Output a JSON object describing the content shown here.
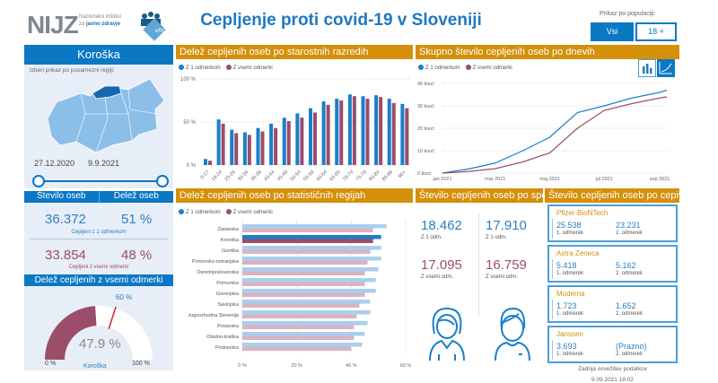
{
  "header": {
    "logo": "NIJZ",
    "institute_line1": "Nacionalni inštitut",
    "institute_line2_prefix": "za ",
    "institute_line2_bold": "javno zdravje",
    "erco_logo": "eRCO",
    "title": "Cepljenje proti covid-19 v Sloveniji",
    "population_label": "Prikaz po populaciji:",
    "btn_all": "Vsi",
    "btn_18": "18 +"
  },
  "region": {
    "name": "Koroška",
    "select_label": "Izberi prikaz po posamezni regiji:",
    "date_from": "27.12.2020",
    "date_to": "9.9.2021"
  },
  "stats": {
    "col1": "Število oseb",
    "col2": "Delež oseb",
    "dose1_count": "36.372",
    "dose1_pct": "51 %",
    "dose1_label": "Cepljeni z 1 odmerkom",
    "full_count": "33.854",
    "full_pct": "48 %",
    "full_label": "Cepljeni z vsemi odmerki"
  },
  "gauge": {
    "title": "Delež cepljenih z vsemi odmerki",
    "value": 47.9,
    "value_label": "47.9 %",
    "target": 60,
    "target_label": "60 %",
    "min_label": "0 %",
    "max_label": "100 %",
    "region": "Koroška"
  },
  "legend": {
    "dose1": "Z 1 odmerkom",
    "full": "Z vsemi odmerki"
  },
  "colors": {
    "blue": "#1a7fc9",
    "maroon": "#9b4d6a",
    "gold": "#d4900a",
    "light_blue": "#a9cfee",
    "light_maroon": "#d9b3c2"
  },
  "chart_data": [
    {
      "type": "bar",
      "title": "Delež cepljenih oseb po starostnih razredih",
      "categories": [
        "0-17",
        "18-24",
        "25-29",
        "30-34",
        "35-39",
        "40-44",
        "45-49",
        "50-54",
        "55-59",
        "60-64",
        "65-69",
        "70-74",
        "75-79",
        "80-84",
        "85-89",
        "90+"
      ],
      "series": [
        {
          "name": "Z 1 odmerkom",
          "values": [
            7,
            53,
            41,
            38,
            43,
            48,
            55,
            60,
            66,
            74,
            77,
            82,
            80,
            81,
            77,
            71
          ]
        },
        {
          "name": "Z vsemi odmerki",
          "values": [
            5,
            48,
            37,
            35,
            39,
            43,
            51,
            55,
            61,
            70,
            75,
            80,
            77,
            79,
            72,
            66
          ]
        }
      ],
      "ylim": [
        0,
        100
      ],
      "yticks": [
        "0 %",
        "50 %",
        "100 %"
      ]
    },
    {
      "type": "line",
      "title": "Skupno število cepljenih oseb po dnevih",
      "x": [
        "2021-01-01",
        "2021-02-01",
        "2021-03-01",
        "2021-04-01",
        "2021-05-01",
        "2021-06-01",
        "2021-07-01",
        "2021-08-01",
        "2021-09-01",
        "2021-09-09"
      ],
      "series": [
        {
          "name": "Z 1 odmerkom",
          "values": [
            0,
            2000,
            4500,
            10000,
            16000,
            27000,
            30000,
            33500,
            36000,
            37000
          ]
        },
        {
          "name": "Z vsemi odmerki",
          "values": [
            0,
            800,
            2000,
            5000,
            9000,
            20000,
            28000,
            31000,
            33500,
            34000
          ]
        }
      ],
      "ylim": [
        0,
        40000
      ],
      "yticks": [
        "0 tisoč",
        "10 tisoč",
        "20 tisoč",
        "30 tisoč",
        "40 tisoč"
      ],
      "xticks": [
        "jan 2021",
        "mar 2021",
        "maj 2021",
        "jul 2021",
        "sep 2021"
      ]
    },
    {
      "type": "bar",
      "orientation": "horizontal",
      "title": "Delež cepljenih oseb po statističnih regijah",
      "categories": [
        "Zasavska",
        "Koroška",
        "Goriška",
        "Primorsko-notranjska",
        "Osrednjeslovenska",
        "Pomurska",
        "Gorenjska",
        "Savinjska",
        "Jugovzhodna Slovenija",
        "Posavska",
        "Obalno-kraška",
        "Podravska"
      ],
      "highlight": "Koroška",
      "series": [
        {
          "name": "Z 1 odmerkom",
          "values": [
            53,
            51,
            51,
            51,
            50,
            49,
            49,
            47,
            47,
            46,
            45,
            44
          ]
        },
        {
          "name": "Z vsemi odmerki",
          "values": [
            48,
            48,
            47,
            46,
            45,
            45,
            45,
            43,
            42,
            41,
            41,
            40
          ]
        }
      ],
      "xlim": [
        0,
        60
      ],
      "xticks": [
        "0 %",
        "20 %",
        "40 %",
        "60 %"
      ]
    }
  ],
  "gender": {
    "title": "Število cepljenih oseb po spolu",
    "female_dose1": "18.462",
    "female_full": "17.095",
    "male_dose1": "17.910",
    "male_full": "16.759",
    "dose1_label": "Z 1 odm.",
    "full_label": "Z vsemi odm."
  },
  "vaccines": {
    "title": "Število cepljenih oseb po cepivu",
    "dose1_label": "1. odmerek",
    "dose2_label": "2. odmerek",
    "items": [
      {
        "name": "Pfizer-BioNTech",
        "d1": "25.538",
        "d2": "23.231"
      },
      {
        "name": "Astra Zeneca",
        "d1": "5.418",
        "d2": "5.162"
      },
      {
        "name": "Moderna",
        "d1": "1.723",
        "d2": "1.652"
      },
      {
        "name": "Janssen",
        "d1": "3.693",
        "d2": "(Prazno)"
      }
    ]
  },
  "footer": {
    "refresh_label": "Zadnja osvežitev podatkov",
    "refresh_time": "9.09.2021 18:02"
  }
}
